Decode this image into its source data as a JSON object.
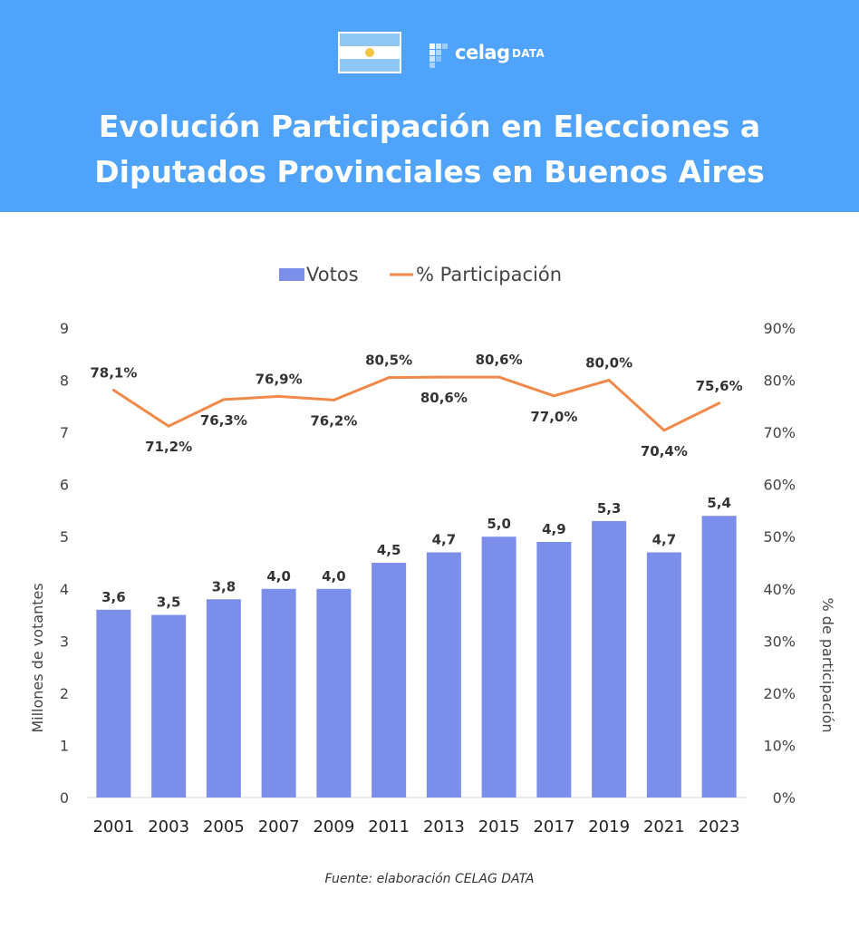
{
  "colors": {
    "header_bg": "#4fa3fb",
    "bar": "#7b8eea",
    "line": "#f0894a",
    "axis_text": "#444444",
    "label_text": "#333333",
    "flag_blue": "#8fc7f5",
    "flag_white": "#ffffff",
    "flag_sun": "#f5c542"
  },
  "header": {
    "title_line1": "Evolución Participación en Elecciones a",
    "title_line2": "Diputados Provinciales en Buenos Aires",
    "brand_name": "celag",
    "brand_suffix": "DATA",
    "flag_icon": "argentina-flag-icon",
    "logo_icon": "celag-pixel-logo-icon"
  },
  "chart_data": {
    "type": "bar",
    "categories": [
      "2001",
      "2003",
      "2005",
      "2007",
      "2009",
      "2011",
      "2013",
      "2015",
      "2017",
      "2019",
      "2021",
      "2023"
    ],
    "series": [
      {
        "name": "Votos",
        "type": "bar",
        "axis": "left",
        "values": [
          3.6,
          3.5,
          3.8,
          4.0,
          4.0,
          4.5,
          4.7,
          5.0,
          4.9,
          5.3,
          4.7,
          5.4
        ],
        "labels": [
          "3,6",
          "3,5",
          "3,8",
          "4,0",
          "4,0",
          "4,5",
          "4,7",
          "5,0",
          "4,9",
          "5,3",
          "4,7",
          "5,4"
        ]
      },
      {
        "name": "% Participación",
        "type": "line",
        "axis": "right",
        "values": [
          78.1,
          71.2,
          76.3,
          76.9,
          76.2,
          80.5,
          80.6,
          80.6,
          77.0,
          80.0,
          70.4,
          75.6
        ],
        "labels": [
          "78,1%",
          "71,2%",
          "76,3%",
          "76,9%",
          "76,2%",
          "80,5%",
          "80,6%",
          "80,6%",
          "77,0%",
          "80,0%",
          "70,4%",
          "75,6%"
        ],
        "label_positions": [
          "above",
          "below",
          "below",
          "above",
          "below",
          "above",
          "below",
          "above",
          "below",
          "above",
          "below",
          "above"
        ]
      }
    ],
    "ylabel_left": "Millones de votantes",
    "ylabel_right": "% de participación",
    "ylim_left": [
      0,
      9
    ],
    "yticks_left": [
      "0",
      "1",
      "2",
      "3",
      "4",
      "5",
      "6",
      "7",
      "8",
      "9"
    ],
    "ylim_right": [
      0,
      90
    ],
    "yticks_right": [
      "0%",
      "10%",
      "20%",
      "30%",
      "40%",
      "50%",
      "60%",
      "70%",
      "80%",
      "90%"
    ],
    "grid": false,
    "legend_position": "top-center"
  },
  "source": "Fuente: elaboración CELAG DATA"
}
